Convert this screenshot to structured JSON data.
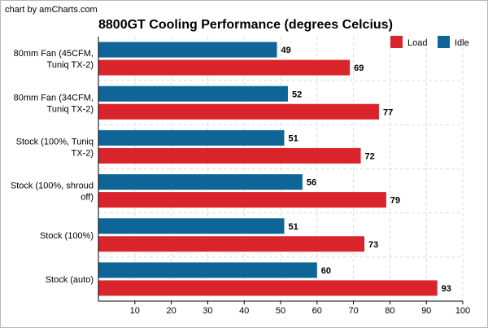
{
  "credit": "chart by amCharts.com",
  "chart_data": {
    "type": "bar",
    "orientation": "horizontal",
    "title": "8800GT Cooling Performance (degrees Celcius)",
    "categories": [
      [
        "80mm Fan (45CFM,",
        "Tuniq TX-2)"
      ],
      [
        "80mm Fan (34CFM,",
        "Tuniq TX-2)"
      ],
      [
        "Stock (100%, Tuniq",
        "TX-2)"
      ],
      [
        "Stock (100%, shroud",
        "off)"
      ],
      [
        "Stock (100%)"
      ],
      [
        "Stock (auto)"
      ]
    ],
    "series": [
      {
        "name": "Idle",
        "color": "#0f6597",
        "values": [
          49,
          52,
          51,
          56,
          51,
          60
        ]
      },
      {
        "name": "Load",
        "color": "#d9242b",
        "values": [
          69,
          77,
          72,
          79,
          73,
          93
        ]
      }
    ],
    "legend": [
      "Load",
      "Idle"
    ],
    "legend_position": "top-right",
    "xlim": [
      0,
      100
    ],
    "xticks": [
      10,
      20,
      30,
      40,
      50,
      60,
      70,
      80,
      90,
      100
    ],
    "grid": true
  }
}
